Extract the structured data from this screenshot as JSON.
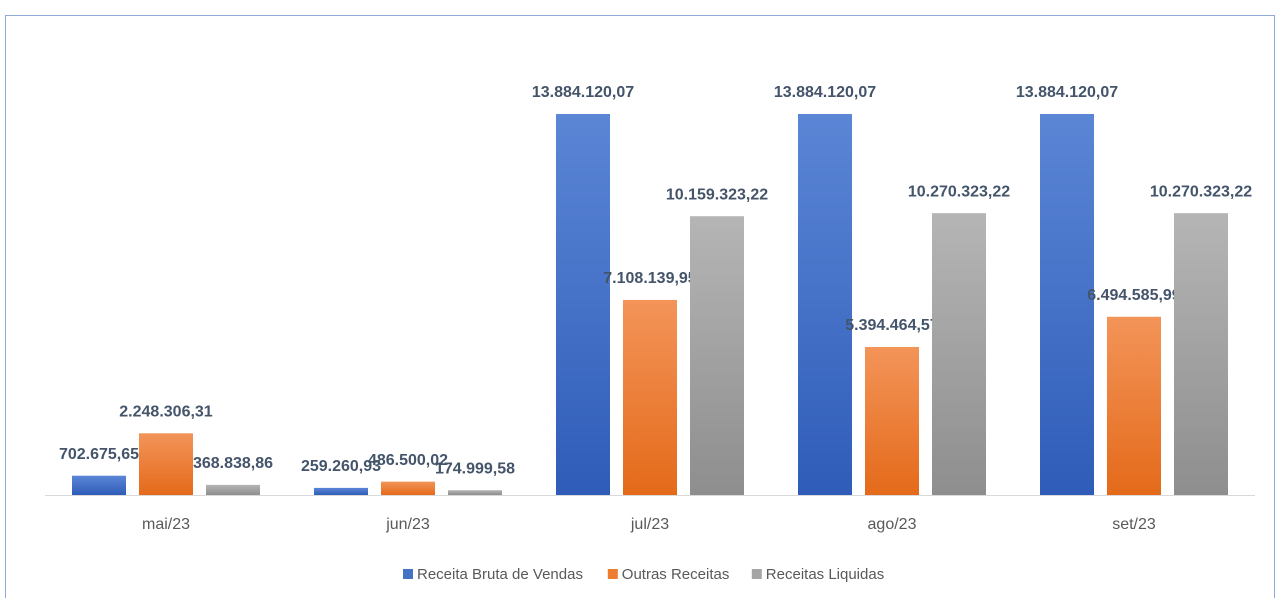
{
  "chart_data": {
    "type": "bar",
    "categories": [
      "mai/23",
      "jun/23",
      "jul/23",
      "ago/23",
      "set/23"
    ],
    "series": [
      {
        "name": "Receita Bruta de Vendas",
        "color": "#4472c4",
        "values": [
          702675.65,
          259260.93,
          13884120.07,
          13884120.07,
          13884120.07
        ],
        "value_labels": [
          "702.675,65",
          "259.260,93",
          "13.884.120,07",
          "13.884.120,07",
          "13.884.120,07"
        ]
      },
      {
        "name": "Outras Receitas",
        "color": "#ed7d31",
        "values": [
          2248306.31,
          486500.02,
          7108139.95,
          5394464.57,
          6494585.99
        ],
        "value_labels": [
          "2.248.306,31",
          "486.500,02",
          "7.108.139,95",
          "5.394.464,57",
          "6.494.585,99"
        ]
      },
      {
        "name": "Receitas Liquidas",
        "color": "#a5a5a5",
        "values": [
          368838.86,
          174999.58,
          10159323.22,
          10270323.22,
          10270323.22
        ],
        "value_labels": [
          "368.838,86",
          "174.999,58",
          "10.159.323,22",
          "10.270.323,22",
          "10.270.323,22"
        ]
      }
    ],
    "legend": "bottom"
  }
}
